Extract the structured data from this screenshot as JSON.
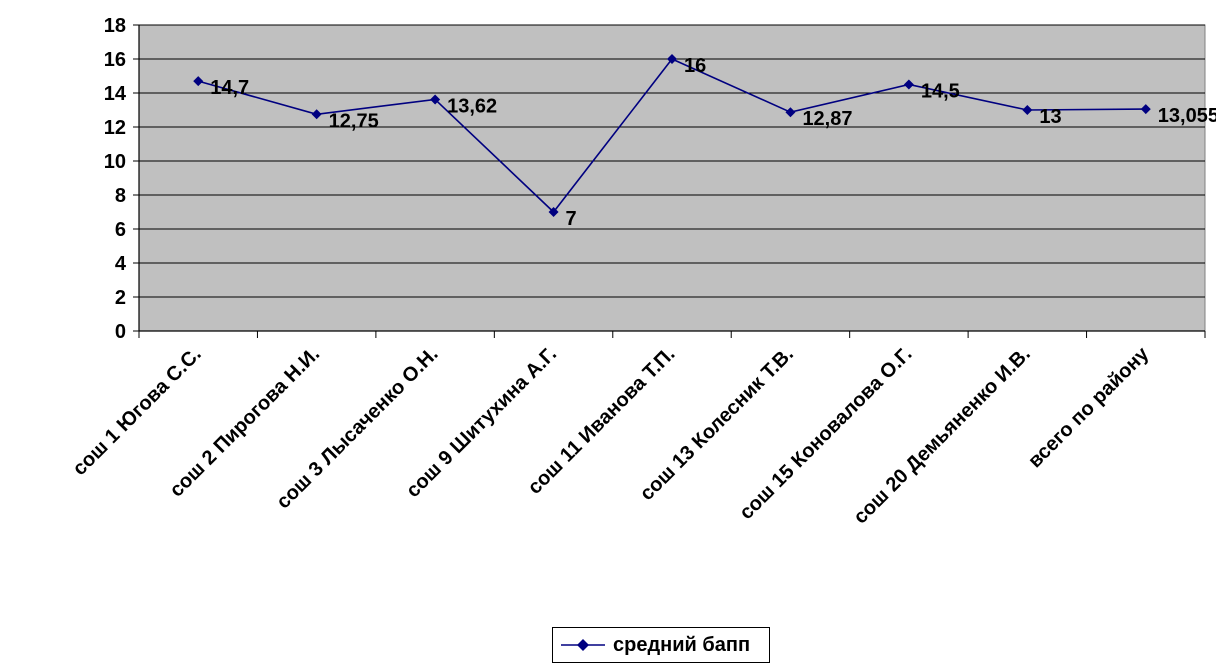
{
  "chart_data": {
    "type": "line",
    "categories": [
      "сош 1 Югова С.С.",
      "сош 2 Пирогова Н.И.",
      "сош 3 Лысаченко О.Н.",
      "сош 9 Шитухина А.Г.",
      "сош 11 Иванова Т.П.",
      "сош 13 Колесник Т.В.",
      "сош 15 Коновалова О.Г.",
      "сош 20 Демьяненко И.В.",
      "всего по району"
    ],
    "series": [
      {
        "name": "средний бапп",
        "values": [
          14.7,
          12.75,
          13.62,
          7,
          16,
          12.87,
          14.5,
          13,
          13.055
        ],
        "labels": [
          "14,7",
          "12,75",
          "13,62",
          "7",
          "16",
          "12,87",
          "14,5",
          "13",
          "13,055"
        ],
        "color": "#000080"
      }
    ],
    "ylim": [
      0,
      18
    ],
    "yticks": [
      0,
      2,
      4,
      6,
      8,
      10,
      12,
      14,
      16,
      18
    ],
    "grid": true,
    "legend": "bottom",
    "plot_background": "#c0c0c0",
    "title": "",
    "xlabel": "",
    "ylabel": ""
  }
}
